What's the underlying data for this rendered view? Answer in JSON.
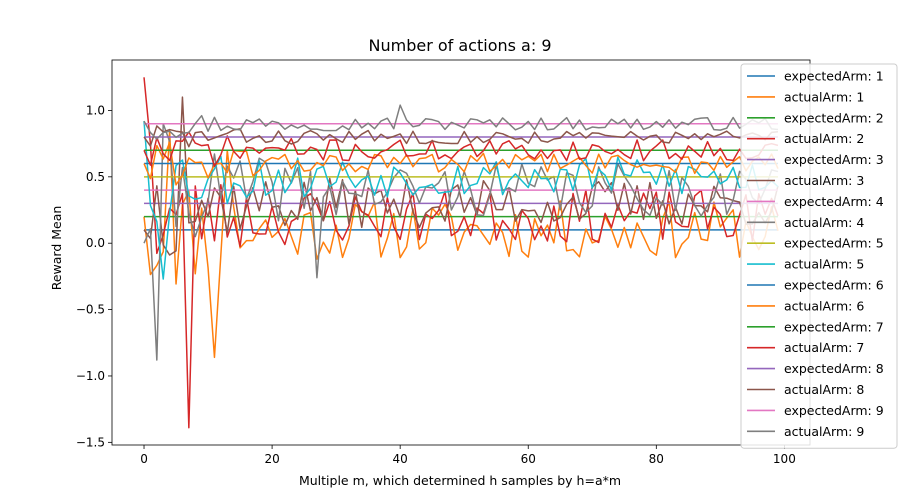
{
  "chart_data": {
    "type": "line",
    "title": "Number of actions a: 9",
    "xlabel": "Multiple m, which determined h samples by h=a*m",
    "ylabel": "Reward Mean",
    "xlim": [
      -5,
      104
    ],
    "ylim": [
      -1.52,
      1.38
    ],
    "xticks": [
      0,
      20,
      40,
      60,
      80,
      100
    ],
    "yticks": [
      -1.5,
      -1.0,
      -0.5,
      0.0,
      0.5,
      1.0
    ],
    "ytick_labels": [
      "−1.5",
      "−1.0",
      "−0.5",
      "0.0",
      "0.5",
      "1.0"
    ],
    "grid": false,
    "legend_position": "top-right",
    "series": [
      {
        "name": "expectedArm: 1",
        "color": "#1f77b4",
        "kind": "expected",
        "level": 0.1
      },
      {
        "name": "actualArm: 1",
        "color": "#ff7f0e",
        "kind": "actual",
        "center": 0.1,
        "spread": 0.22,
        "start": 0.2,
        "seed": 11,
        "spikes": [
          [
            11,
            -0.86
          ],
          [
            4,
            0.85
          ],
          [
            13,
            0.7
          ]
        ]
      },
      {
        "name": "expectedArm: 2",
        "color": "#2ca02c",
        "kind": "expected",
        "level": 0.2
      },
      {
        "name": "actualArm: 2",
        "color": "#d62728",
        "kind": "actual",
        "center": 0.2,
        "spread": 0.2,
        "start": 1.25,
        "seed": 23,
        "spikes": [
          [
            1,
            0.75
          ],
          [
            7,
            -1.39
          ]
        ]
      },
      {
        "name": "expectedArm: 3",
        "color": "#9467bd",
        "kind": "expected",
        "level": 0.3
      },
      {
        "name": "actualArm: 3",
        "color": "#8c564b",
        "kind": "actual",
        "center": 0.3,
        "spread": 0.18,
        "start": 0.1,
        "seed": 37,
        "spikes": [
          [
            6,
            1.1
          ]
        ]
      },
      {
        "name": "expectedArm: 4",
        "color": "#e377c2",
        "kind": "expected",
        "level": 0.4
      },
      {
        "name": "actualArm: 4",
        "color": "#7f7f7f",
        "kind": "actual",
        "center": 0.4,
        "spread": 0.2,
        "start": 0.0,
        "seed": 41,
        "spikes": [
          [
            2,
            -0.88
          ],
          [
            27,
            -0.26
          ]
        ]
      },
      {
        "name": "expectedArm: 5",
        "color": "#bcbd22",
        "kind": "expected",
        "level": 0.5
      },
      {
        "name": "actualArm: 5",
        "color": "#17becf",
        "kind": "actual",
        "center": 0.5,
        "spread": 0.15,
        "start": 0.92,
        "seed": 53,
        "spikes": [
          [
            3,
            -0.27
          ]
        ]
      },
      {
        "name": "expectedArm: 6",
        "color": "#1f77b4",
        "kind": "expected",
        "level": 0.6
      },
      {
        "name": "actualArm: 6",
        "color": "#ff7f0e",
        "kind": "actual",
        "center": 0.6,
        "spread": 0.08,
        "start": 0.6,
        "seed": 61,
        "spikes": []
      },
      {
        "name": "expectedArm: 7",
        "color": "#2ca02c",
        "kind": "expected",
        "level": 0.7
      },
      {
        "name": "actualArm: 7",
        "color": "#d62728",
        "kind": "actual",
        "center": 0.7,
        "spread": 0.08,
        "start": 0.7,
        "seed": 71,
        "spikes": []
      },
      {
        "name": "expectedArm: 8",
        "color": "#9467bd",
        "kind": "expected",
        "level": 0.8
      },
      {
        "name": "actualArm: 8",
        "color": "#8c564b",
        "kind": "actual",
        "center": 0.8,
        "spread": 0.05,
        "start": 0.8,
        "seed": 83,
        "spikes": []
      },
      {
        "name": "expectedArm: 9",
        "color": "#e377c2",
        "kind": "expected",
        "level": 0.9
      },
      {
        "name": "actualArm: 9",
        "color": "#7f7f7f",
        "kind": "actual",
        "center": 0.9,
        "spread": 0.05,
        "start": 0.92,
        "seed": 97,
        "spikes": [
          [
            40,
            1.04
          ]
        ]
      }
    ]
  }
}
